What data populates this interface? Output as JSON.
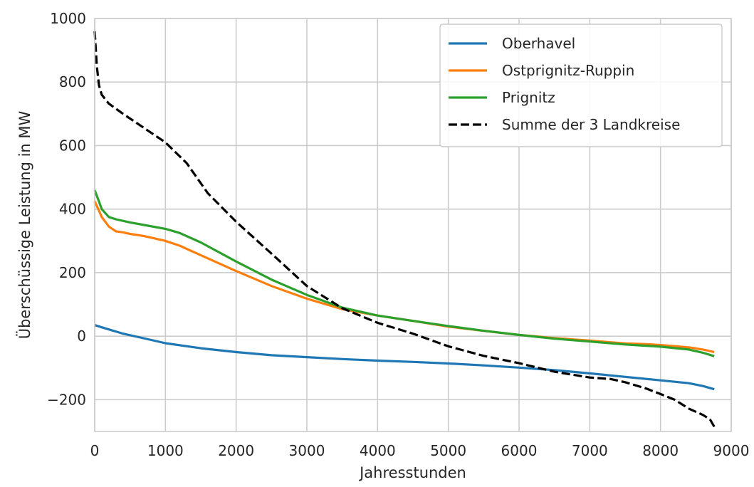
{
  "chart_data": {
    "type": "line",
    "title": "",
    "xlabel": "Jahresstunden",
    "ylabel": "Überschüssige Leistung in MW",
    "xlim": [
      0,
      9000
    ],
    "ylim": [
      -300,
      1000
    ],
    "xticks": [
      0,
      1000,
      2000,
      3000,
      4000,
      5000,
      6000,
      7000,
      8000,
      9000
    ],
    "yticks": [
      -200,
      0,
      200,
      400,
      600,
      800,
      1000
    ],
    "xtick_labels": [
      "0",
      "1000",
      "2000",
      "3000",
      "4000",
      "5000",
      "6000",
      "7000",
      "8000",
      "9000"
    ],
    "ytick_labels": [
      "−200",
      "0",
      "200",
      "400",
      "600",
      "800",
      "1000"
    ],
    "grid": true,
    "legend_position": "top-right",
    "series": [
      {
        "name": "Oberhavel",
        "color": "#1f77b4",
        "style": "solid",
        "x": [
          0,
          100,
          400,
          800,
          1000,
          1500,
          2000,
          2500,
          3000,
          3500,
          4000,
          4500,
          5000,
          5500,
          6000,
          6500,
          7000,
          7500,
          8000,
          8400,
          8600,
          8760
        ],
        "y": [
          35,
          28,
          8,
          -12,
          -22,
          -38,
          -50,
          -60,
          -66,
          -72,
          -77,
          -81,
          -86,
          -92,
          -99,
          -107,
          -117,
          -128,
          -139,
          -148,
          -157,
          -167
        ]
      },
      {
        "name": "Ostprignitz-Ruppin",
        "color": "#ff7f0e",
        "style": "solid",
        "x": [
          0,
          50,
          100,
          200,
          300,
          400,
          500,
          700,
          1000,
          1200,
          1500,
          2000,
          2500,
          3000,
          3500,
          4000,
          4500,
          5000,
          5500,
          6000,
          6500,
          7000,
          7500,
          7800,
          8000,
          8400,
          8600,
          8760
        ],
        "y": [
          425,
          400,
          375,
          345,
          330,
          327,
          322,
          315,
          300,
          285,
          255,
          205,
          158,
          118,
          85,
          65,
          48,
          30,
          17,
          4,
          -6,
          -14,
          -23,
          -25,
          -28,
          -35,
          -42,
          -50
        ]
      },
      {
        "name": "Prignitz",
        "color": "#2ca02c",
        "style": "solid",
        "x": [
          0,
          50,
          100,
          200,
          300,
          500,
          700,
          1000,
          1200,
          1500,
          2000,
          2500,
          3000,
          3500,
          4000,
          4500,
          5000,
          5500,
          6000,
          6500,
          7000,
          7500,
          8000,
          8400,
          8600,
          8760
        ],
        "y": [
          460,
          430,
          400,
          375,
          368,
          358,
          350,
          338,
          325,
          295,
          235,
          178,
          130,
          90,
          65,
          48,
          32,
          17,
          4,
          -8,
          -17,
          -26,
          -33,
          -42,
          -52,
          -63
        ]
      },
      {
        "name": "Summe der 3 Landkreise",
        "color": "#000000",
        "style": "dashed",
        "x": [
          0,
          30,
          60,
          100,
          200,
          400,
          700,
          1000,
          1300,
          1600,
          2000,
          2500,
          3000,
          3500,
          4000,
          4500,
          5000,
          5500,
          6000,
          6500,
          7000,
          7300,
          7500,
          7800,
          8000,
          8200,
          8400,
          8600,
          8700,
          8760
        ],
        "y": [
          960,
          850,
          790,
          760,
          732,
          700,
          655,
          610,
          545,
          450,
          360,
          260,
          158,
          88,
          42,
          8,
          -32,
          -62,
          -85,
          -112,
          -130,
          -135,
          -145,
          -165,
          -182,
          -200,
          -228,
          -248,
          -262,
          -285
        ]
      }
    ]
  }
}
